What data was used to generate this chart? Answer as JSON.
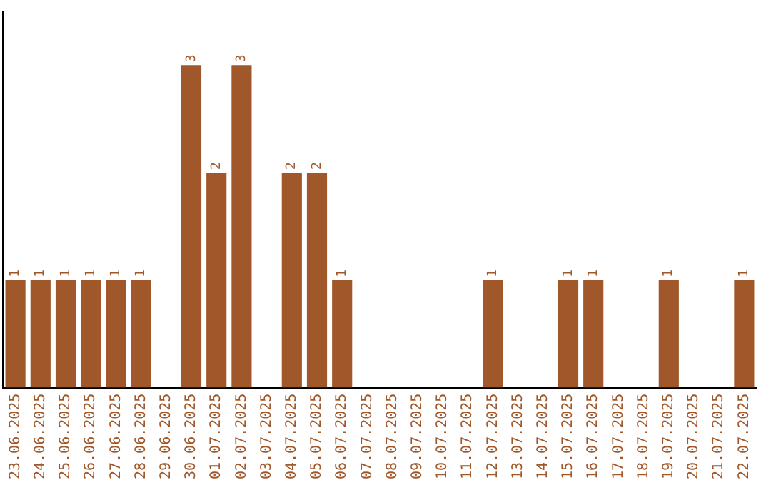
{
  "chart_data": {
    "type": "bar",
    "categories": [
      "23.06.2025",
      "24.06.2025",
      "25.06.2025",
      "26.06.2025",
      "27.06.2025",
      "28.06.2025",
      "29.06.2025",
      "30.06.2025",
      "01.07.2025",
      "02.07.2025",
      "03.07.2025",
      "04.07.2025",
      "05.07.2025",
      "06.07.2025",
      "07.07.2025",
      "08.07.2025",
      "09.07.2025",
      "10.07.2025",
      "11.07.2025",
      "12.07.2025",
      "13.07.2025",
      "14.07.2025",
      "15.07.2025",
      "16.07.2025",
      "17.07.2025",
      "18.07.2025",
      "19.07.2025",
      "20.07.2025",
      "21.07.2025",
      "22.07.2025"
    ],
    "values": [
      1,
      1,
      1,
      1,
      1,
      1,
      0,
      3,
      2,
      3,
      0,
      2,
      2,
      1,
      0,
      0,
      0,
      0,
      0,
      1,
      0,
      0,
      1,
      1,
      0,
      0,
      1,
      0,
      0,
      1
    ],
    "value_labels": [
      "1",
      "1",
      "1",
      "1",
      "1",
      "1",
      null,
      "3",
      "2",
      "3",
      null,
      "2",
      "2",
      "1",
      null,
      null,
      null,
      null,
      null,
      "1",
      null,
      null,
      "1",
      "1",
      null,
      null,
      "1",
      null,
      null,
      "1"
    ],
    "color": "#a0582a",
    "tick_labels": "x",
    "grid": false,
    "legend": false
  }
}
